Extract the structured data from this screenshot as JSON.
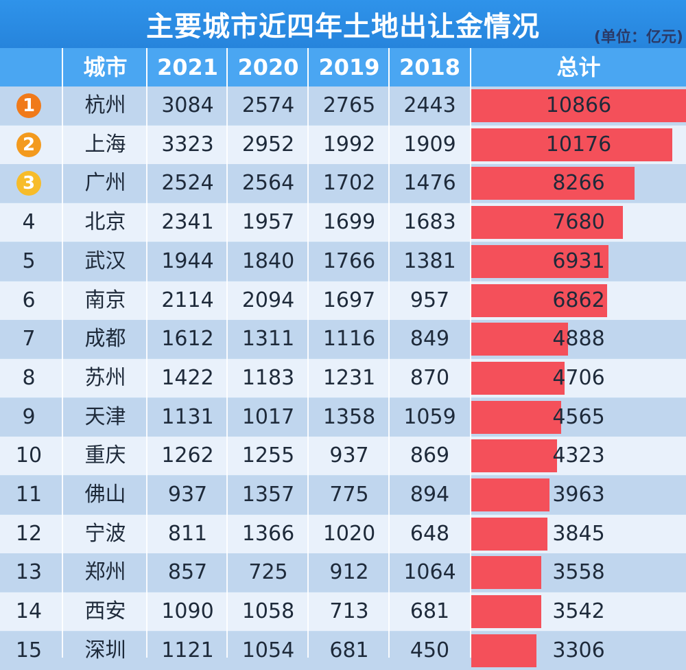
{
  "title": "主要城市近四年土地出让金情况",
  "unit": "(单位：亿元)",
  "colors": {
    "title_bg": "#2684dc",
    "header_bg": "#4aa6f2",
    "row_light": "#e9f1fb",
    "row_dark": "#c0d6ee",
    "bar": "#f4505a",
    "rank1": "#f07a1a",
    "rank2": "#f39a1e",
    "rank3": "#f7bc2a"
  },
  "chart_data": {
    "type": "table",
    "columns": [
      "城市",
      "2021",
      "2020",
      "2019",
      "2018",
      "总计"
    ],
    "rows": [
      {
        "rank": "1",
        "city": "杭州",
        "y2021": "3084",
        "y2020": "2574",
        "y2019": "2765",
        "y2018": "2443",
        "total": 10866
      },
      {
        "rank": "2",
        "city": "上海",
        "y2021": "3323",
        "y2020": "2952",
        "y2019": "1992",
        "y2018": "1909",
        "total": 10176
      },
      {
        "rank": "3",
        "city": "广州",
        "y2021": "2524",
        "y2020": "2564",
        "y2019": "1702",
        "y2018": "1476",
        "total": 8266
      },
      {
        "rank": "4",
        "city": "北京",
        "y2021": "2341",
        "y2020": "1957",
        "y2019": "1699",
        "y2018": "1683",
        "total": 7680
      },
      {
        "rank": "5",
        "city": "武汉",
        "y2021": "1944",
        "y2020": "1840",
        "y2019": "1766",
        "y2018": "1381",
        "total": 6931
      },
      {
        "rank": "6",
        "city": "南京",
        "y2021": "2114",
        "y2020": "2094",
        "y2019": "1697",
        "y2018": "957",
        "total": 6862
      },
      {
        "rank": "7",
        "city": "成都",
        "y2021": "1612",
        "y2020": "1311",
        "y2019": "1116",
        "y2018": "849",
        "total": 4888
      },
      {
        "rank": "8",
        "city": "苏州",
        "y2021": "1422",
        "y2020": "1183",
        "y2019": "1231",
        "y2018": "870",
        "total": 4706
      },
      {
        "rank": "9",
        "city": "天津",
        "y2021": "1131",
        "y2020": "1017",
        "y2019": "1358",
        "y2018": "1059",
        "total": 4565
      },
      {
        "rank": "10",
        "city": "重庆",
        "y2021": "1262",
        "y2020": "1255",
        "y2019": "937",
        "y2018": "869",
        "total": 4323
      },
      {
        "rank": "11",
        "city": "佛山",
        "y2021": "937",
        "y2020": "1357",
        "y2019": "775",
        "y2018": "894",
        "total": 3963
      },
      {
        "rank": "12",
        "city": "宁波",
        "y2021": "811",
        "y2020": "1366",
        "y2019": "1020",
        "y2018": "648",
        "total": 3845
      },
      {
        "rank": "13",
        "city": "郑州",
        "y2021": "857",
        "y2020": "725",
        "y2019": "912",
        "y2018": "1064",
        "total": 3558
      },
      {
        "rank": "14",
        "city": "西安",
        "y2021": "1090",
        "y2020": "1058",
        "y2019": "713",
        "y2018": "681",
        "total": 3542
      },
      {
        "rank": "15",
        "city": "深圳",
        "y2021": "1121",
        "y2020": "1054",
        "y2019": "681",
        "y2018": "450",
        "total": 3306
      }
    ],
    "bar_max": 10866
  }
}
